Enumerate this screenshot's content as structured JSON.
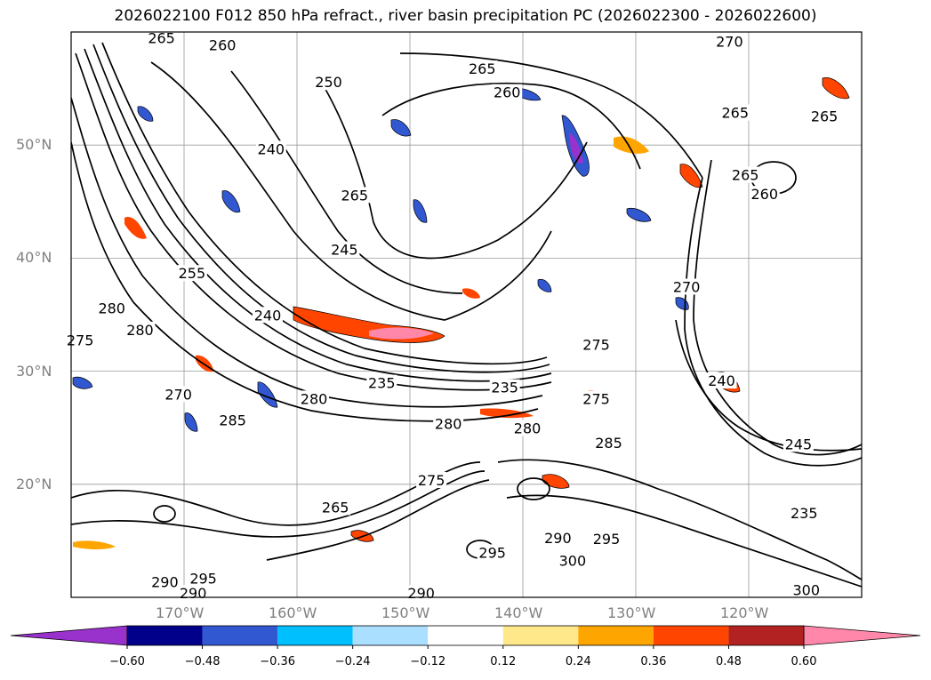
{
  "title": "2026022100 F012 850 hPa refract., river basin precipitation PC (2026022300 - 2026022600)",
  "chart_data": {
    "type": "contour map",
    "title": "2026022100 F012 850 hPa refract., river basin precipitation PC (2026022300 - 2026022600)",
    "lat_ticks": [
      "50°N",
      "40°N",
      "30°N",
      "20°N"
    ],
    "lon_ticks": [
      "170°W",
      "160°W",
      "150°W",
      "140°W",
      "130°W",
      "120°W"
    ],
    "lat_values": [
      50,
      40,
      30,
      20
    ],
    "lon_values": [
      -170,
      -160,
      -150,
      -140,
      -130,
      -120
    ],
    "lat_range": [
      10,
      60
    ],
    "lon_range": [
      -180,
      -110
    ],
    "grid": true,
    "contour_labels": [
      {
        "text": "265",
        "lon": -172,
        "lat": 59.4
      },
      {
        "text": "260",
        "lon": -166.6,
        "lat": 58.8
      },
      {
        "text": "265",
        "lon": -143.6,
        "lat": 56.7
      },
      {
        "text": "250",
        "lon": -157.2,
        "lat": 55.5
      },
      {
        "text": "260",
        "lon": -141.4,
        "lat": 54.6
      },
      {
        "text": "240",
        "lon": -162.3,
        "lat": 49.6
      },
      {
        "text": "265",
        "lon": -154.9,
        "lat": 45.5
      },
      {
        "text": "245",
        "lon": -155.8,
        "lat": 40.7
      },
      {
        "text": "255",
        "lon": -169.3,
        "lat": 38.6
      },
      {
        "text": "240",
        "lon": -162.6,
        "lat": 34.9
      },
      {
        "text": "280",
        "lon": -176.4,
        "lat": 35.5
      },
      {
        "text": "280",
        "lon": -173.9,
        "lat": 33.6
      },
      {
        "text": "275",
        "lon": -179.2,
        "lat": 32.7
      },
      {
        "text": "275",
        "lon": -133.5,
        "lat": 32.3
      },
      {
        "text": "235",
        "lon": -152.5,
        "lat": 28.9
      },
      {
        "text": "235",
        "lon": -141.6,
        "lat": 28.5
      },
      {
        "text": "280",
        "lon": -158.5,
        "lat": 27.5
      },
      {
        "text": "280",
        "lon": -146.6,
        "lat": 25.3
      },
      {
        "text": "280",
        "lon": -139.6,
        "lat": 24.9
      },
      {
        "text": "285",
        "lon": -165.7,
        "lat": 25.6
      },
      {
        "text": "285",
        "lon": -132.4,
        "lat": 23.6
      },
      {
        "text": "275",
        "lon": -148.1,
        "lat": 20.3
      },
      {
        "text": "265",
        "lon": -156.6,
        "lat": 17.9
      },
      {
        "text": "270",
        "lon": -170.5,
        "lat": 27.9
      },
      {
        "text": "295",
        "lon": -168.3,
        "lat": 11.6
      },
      {
        "text": "290",
        "lon": -171.7,
        "lat": 11.3
      },
      {
        "text": "290",
        "lon": -169.2,
        "lat": 10.3
      },
      {
        "text": "290",
        "lon": -149,
        "lat": 10.3
      },
      {
        "text": "295",
        "lon": -142.7,
        "lat": 13.9
      },
      {
        "text": "290",
        "lon": -136.9,
        "lat": 15.2
      },
      {
        "text": "295",
        "lon": -132.6,
        "lat": 15.1
      },
      {
        "text": "300",
        "lon": -135.6,
        "lat": 13.2
      },
      {
        "text": "300",
        "lon": -114.9,
        "lat": 10.6
      },
      {
        "text": "275",
        "lon": -133.5,
        "lat": 27.5
      },
      {
        "text": "270",
        "lon": -125.5,
        "lat": 37.4
      },
      {
        "text": "240",
        "lon": -122.4,
        "lat": 29.1
      },
      {
        "text": "245",
        "lon": -115.6,
        "lat": 23.5
      },
      {
        "text": "235",
        "lon": -115.1,
        "lat": 17.4
      },
      {
        "text": "260",
        "lon": -118.6,
        "lat": 45.6
      },
      {
        "text": "265",
        "lon": -120.3,
        "lat": 47.3
      },
      {
        "text": "265",
        "lon": -121.2,
        "lat": 52.8
      },
      {
        "text": "265",
        "lon": -113.3,
        "lat": 52.5
      },
      {
        "text": "270",
        "lon": -121.7,
        "lat": 59.1
      }
    ],
    "colorbar": {
      "ticks": [
        "−0.60",
        "−0.48",
        "−0.36",
        "−0.24",
        "−0.12",
        "0.12",
        "0.24",
        "0.36",
        "0.48",
        "0.60"
      ],
      "levels": [
        -0.6,
        -0.48,
        -0.36,
        -0.24,
        -0.12,
        0.12,
        0.24,
        0.36,
        0.48,
        0.6
      ],
      "colors": [
        "#9932cc",
        "#00008b",
        "#3158d0",
        "#00bfff",
        "#aadfff",
        "#ffffff",
        "#ffe88a",
        "#ffa500",
        "#ff4500",
        "#b22222",
        "#ff88aa"
      ],
      "extend": "both"
    }
  }
}
